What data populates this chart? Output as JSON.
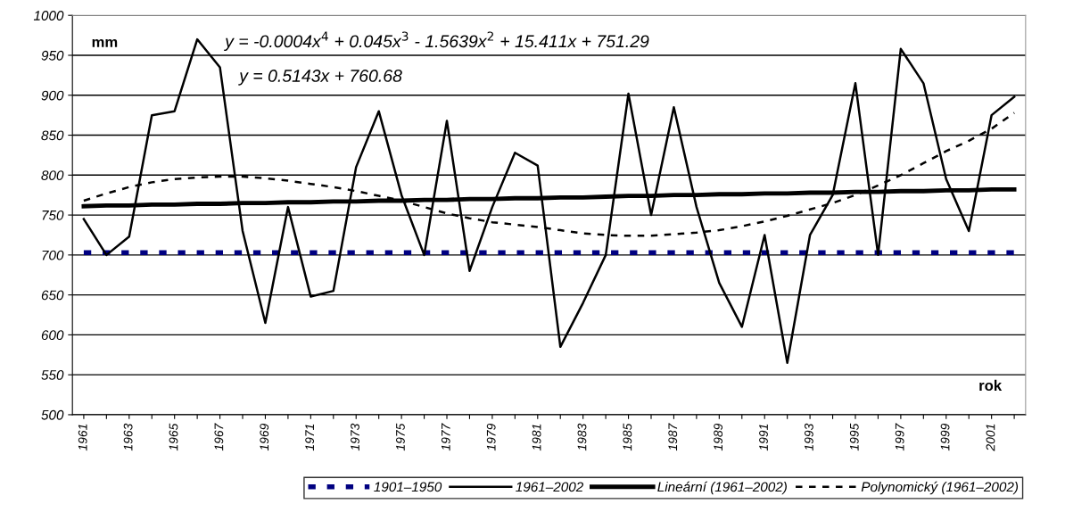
{
  "chart_data": {
    "type": "line",
    "xlabel": "rok",
    "ylabel": "mm",
    "categories": [
      "1961",
      null,
      "1963",
      null,
      "1965",
      null,
      "1967",
      null,
      "1969",
      null,
      "1971",
      null,
      "1973",
      null,
      "1975",
      null,
      "1977",
      null,
      "1979",
      null,
      "1981",
      null,
      "1983",
      null,
      "1985",
      null,
      "1987",
      null,
      "1989",
      null,
      "1991",
      null,
      "1993",
      null,
      "1995",
      null,
      "1997",
      null,
      "1999",
      null,
      "2001",
      null
    ],
    "series": [
      {
        "name": "1901–1950",
        "color": "#000080",
        "line_style": "dashed",
        "values": [
          703,
          703,
          703,
          703,
          703,
          703,
          703,
          703,
          703,
          703,
          703,
          703,
          703,
          703,
          703,
          703,
          703,
          703,
          703,
          703,
          703,
          703,
          703,
          703,
          703,
          703,
          703,
          703,
          703,
          703,
          703,
          703,
          703,
          703,
          703,
          703,
          703,
          703,
          703,
          703,
          703,
          703
        ]
      },
      {
        "name": "1961–2002",
        "color": "#000000",
        "line_style": "solid",
        "values": [
          745,
          700,
          723,
          875,
          880,
          970,
          935,
          730,
          615,
          760,
          648,
          655,
          810,
          880,
          775,
          700,
          868,
          680,
          760,
          828,
          812,
          585,
          640,
          700,
          902,
          750,
          885,
          760,
          665,
          610,
          725,
          565,
          725,
          775,
          915,
          700,
          958,
          915,
          795,
          730,
          875,
          898
        ]
      },
      {
        "name": "Lineární (1961–2002)",
        "color": "#000000",
        "line_style": "solid",
        "values": [
          761,
          762,
          762,
          763,
          763,
          764,
          764,
          765,
          765,
          766,
          766,
          767,
          767,
          768,
          768,
          769,
          769,
          770,
          770,
          771,
          771,
          772,
          772,
          773,
          774,
          774,
          775,
          775,
          776,
          776,
          777,
          777,
          778,
          778,
          779,
          779,
          780,
          780,
          781,
          781,
          782,
          782
        ]
      },
      {
        "name": "Polynomický (1961–2002)",
        "color": "#000000",
        "line_style": "dotted",
        "values": [
          768,
          777,
          785,
          791,
          795,
          797,
          798,
          798,
          796,
          793,
          789,
          785,
          780,
          774,
          768,
          760,
          752,
          746,
          741,
          738,
          735,
          731,
          727,
          725,
          724,
          724,
          726,
          728,
          731,
          736,
          742,
          749,
          757,
          765,
          775,
          787,
          800,
          815,
          830,
          843,
          858,
          878
        ]
      }
    ],
    "ylim": [
      500,
      1000
    ],
    "yticks": [
      500,
      550,
      600,
      650,
      700,
      750,
      800,
      850,
      900,
      950,
      1000
    ],
    "grid": "y",
    "legend": "bottom",
    "marker": "none",
    "annotations": [
      "y = -0.0004x$^{4}$ + 0.045x$^{3}$ - 1.5639x$^{2}$ + 15.411x + 751.29",
      "y = 0.5143x + 760.68"
    ]
  }
}
